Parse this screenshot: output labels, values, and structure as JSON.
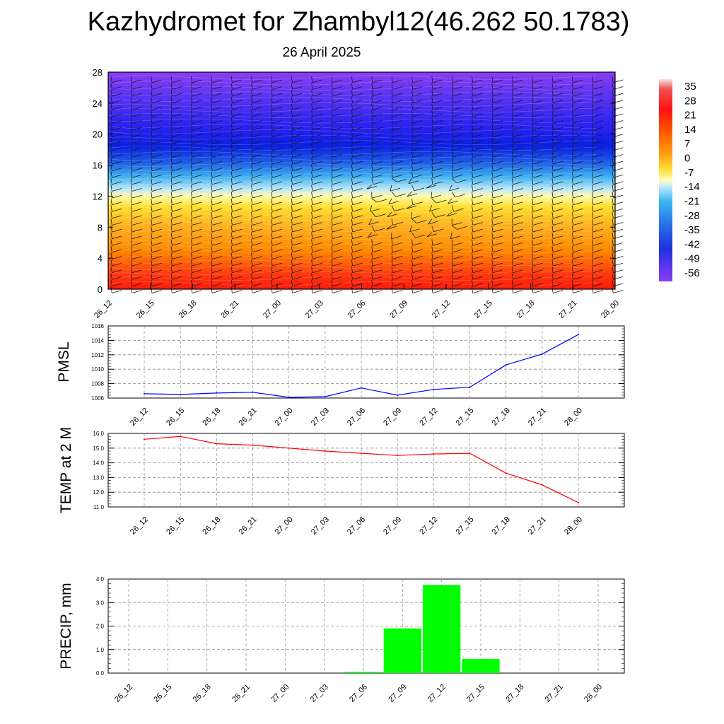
{
  "header": {
    "title": "Kazhydromet for Zhambyl12(46.262 50.1783)",
    "date": "26 April 2025"
  },
  "colors": {
    "pmsl_line": "#0000ff",
    "temp_line": "#ff0000",
    "precip_bar": "#00ff00"
  },
  "chart_data": [
    {
      "type": "heatmap",
      "x": [
        "26_12",
        "26_15",
        "26_18",
        "26_21",
        "27_00",
        "27_03",
        "27_06",
        "27_09",
        "27_12",
        "27_15",
        "27_18",
        "27_21",
        "28_00"
      ],
      "yticks": [
        "0",
        "4",
        "8",
        "12",
        "16",
        "20",
        "24",
        "28"
      ],
      "ylim": [
        0,
        28
      ],
      "colorbar_labels": [
        "35",
        "28",
        "21",
        "14",
        "7",
        "0",
        "-7",
        "-14",
        "-21",
        "-28",
        "-35",
        "-42",
        "-49",
        "-56"
      ],
      "wind_barbs": true
    },
    {
      "type": "line",
      "ylabel": "PMSL",
      "x": [
        "26_12",
        "26_15",
        "26_18",
        "26_21",
        "27_00",
        "27_03",
        "27_06",
        "27_09",
        "27_12",
        "27_15",
        "27_18",
        "27_21",
        "28_00"
      ],
      "values": [
        1006.6,
        1006.5,
        1006.7,
        1006.8,
        1006.1,
        1006.2,
        1007.4,
        1006.4,
        1007.2,
        1007.5,
        1010.6,
        1012.1,
        1014.8
      ],
      "ylim": [
        1006,
        1016
      ],
      "yticks": [
        "1006",
        "1008",
        "1010",
        "1012",
        "1014",
        "1016"
      ],
      "grid": true
    },
    {
      "type": "line",
      "ylabel": "TEMP at 2 M",
      "x": [
        "26_12",
        "26_15",
        "26_18",
        "26_21",
        "27_00",
        "27_03",
        "27_06",
        "27_09",
        "27_12",
        "27_15",
        "27_18",
        "27_21",
        "28_00"
      ],
      "values": [
        15.6,
        15.8,
        15.3,
        15.2,
        15.0,
        14.8,
        14.65,
        14.5,
        14.6,
        14.65,
        13.3,
        12.5,
        11.3
      ],
      "ylim": [
        11,
        16
      ],
      "yticks": [
        "11.0",
        "12.0",
        "13.0",
        "14.0",
        "15.0",
        "16.0"
      ],
      "grid": true
    },
    {
      "type": "bar",
      "ylabel": "PRECIP, mm",
      "categories": [
        "26_12",
        "26_15",
        "26_18",
        "26_21",
        "27_00",
        "27_03",
        "27_06",
        "27_09",
        "27_12",
        "27_15",
        "27_18",
        "27_21",
        "28_00"
      ],
      "values": [
        0,
        0,
        0,
        0,
        0,
        0,
        0.05,
        1.9,
        3.75,
        0.6,
        0,
        0,
        0
      ],
      "ylim": [
        0,
        4
      ],
      "yticks": [
        "0.0",
        "1.0",
        "2.0",
        "3.0",
        "4.0"
      ],
      "grid": true
    }
  ]
}
